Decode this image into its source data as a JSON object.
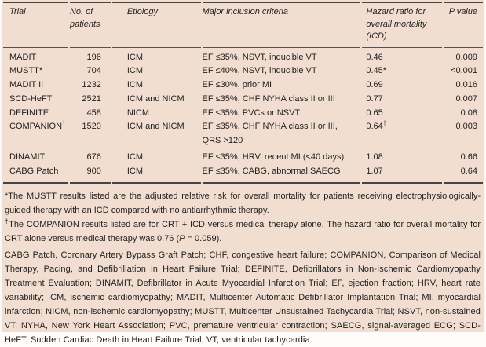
{
  "colors": {
    "background": "#f1ded1",
    "text": "#1f1f1f",
    "rule": "#474543"
  },
  "table": {
    "columns": [
      {
        "key": "trial",
        "label": "Trial"
      },
      {
        "key": "patients",
        "label": "No. of patients"
      },
      {
        "key": "etiology",
        "label": "Etiology"
      },
      {
        "key": "criteria",
        "label": "Major inclusion criteria"
      },
      {
        "key": "hazard",
        "label": "Hazard ratio for overall mortality (ICD)"
      },
      {
        "key": "pvalue",
        "label": "P value"
      }
    ],
    "rows": [
      {
        "trial": "MADIT",
        "patients": "196",
        "etiology": "ICM",
        "criteria": "EF ≤35%, NSVT, inducible VT",
        "hazard": "0.46",
        "pvalue": "0.009"
      },
      {
        "trial": "MUSTT*",
        "patients": "704",
        "etiology": "ICM",
        "criteria": "EF ≤40%, NSVT, inducible VT",
        "hazard": "0.45*",
        "pvalue": "<0.001"
      },
      {
        "trial": "MADIT II",
        "patients": "1232",
        "etiology": "ICM",
        "criteria": "EF ≤30%, prior MI",
        "hazard": "0.69",
        "pvalue": "0.016"
      },
      {
        "trial": "SCD-HeFT",
        "patients": "2521",
        "etiology": "ICM and NICM",
        "criteria": "EF ≤35%, CHF NYHA class II or III",
        "hazard": "0.77",
        "pvalue": "0.007"
      },
      {
        "trial": "DEFINITE",
        "patients": "458",
        "etiology": "NICM",
        "criteria": "EF ≤35%, PVCs or NSVT",
        "hazard": "0.65",
        "pvalue": "0.08"
      },
      {
        "trial": "COMPANION†",
        "patients": "1520",
        "etiology": "ICM and NICM",
        "criteria": "EF ≤35%, CHF NYHA class II or III,\nQRS >120",
        "hazard": "0.64†",
        "pvalue": "0.003"
      },
      {
        "trial": "DINAMIT",
        "patients": "676",
        "etiology": "ICM",
        "criteria": "EF ≤35%, HRV, recent MI (<40 days)",
        "hazard": "1.08",
        "pvalue": "0.66"
      },
      {
        "trial": "CABG Patch",
        "patients": "900",
        "etiology": "ICM",
        "criteria": "EF ≤35%, CABG, abnormal SAECG",
        "hazard": "1.07",
        "pvalue": "0.64"
      }
    ]
  },
  "footnotes": [
    "*The MUSTT results listed are the adjusted relative risk for overall mortality for patients receiving electrophysiologically-guided therapy with an ICD compared with no antiarrhythmic therapy.",
    "†The COMPANION results listed are for CRT + ICD versus medical therapy alone. The hazard ratio for overall mortality for CRT alone versus medical therapy was 0.76 (P = 0.059)."
  ],
  "abbreviations": "CABG Patch, Coronary Artery Bypass Graft Patch; CHF, congestive heart failure; COMPANION, Comparison of Medical Therapy, Pacing, and Defibrillation in Heart Failure Trial; DEFINITE, Defibrillators in Non-Ischemic Cardiomyopathy Treatment Evaluation; DINAMIT, Defibrillator in Acute Myocardial Infarction Trial; EF, ejection fraction; HRV, heart rate variability; ICM, ischemic cardiomyopathy; MADIT, Multicenter Automatic Defibrillator Implantation Trial; MI, myocardial infarction; NICM, non-ischemic cardiomyopathy; MUSTT, Multicenter Unsustained Tachycardia Trial; NSVT, non-sustained VT; NYHA, New York Heart Association; PVC, premature ventricular contraction; SAECG, signal-averaged ECG; SCD-HeFT, Sudden Cardiac Death in Heart Failure Trial; VT, ventricular tachycardia."
}
